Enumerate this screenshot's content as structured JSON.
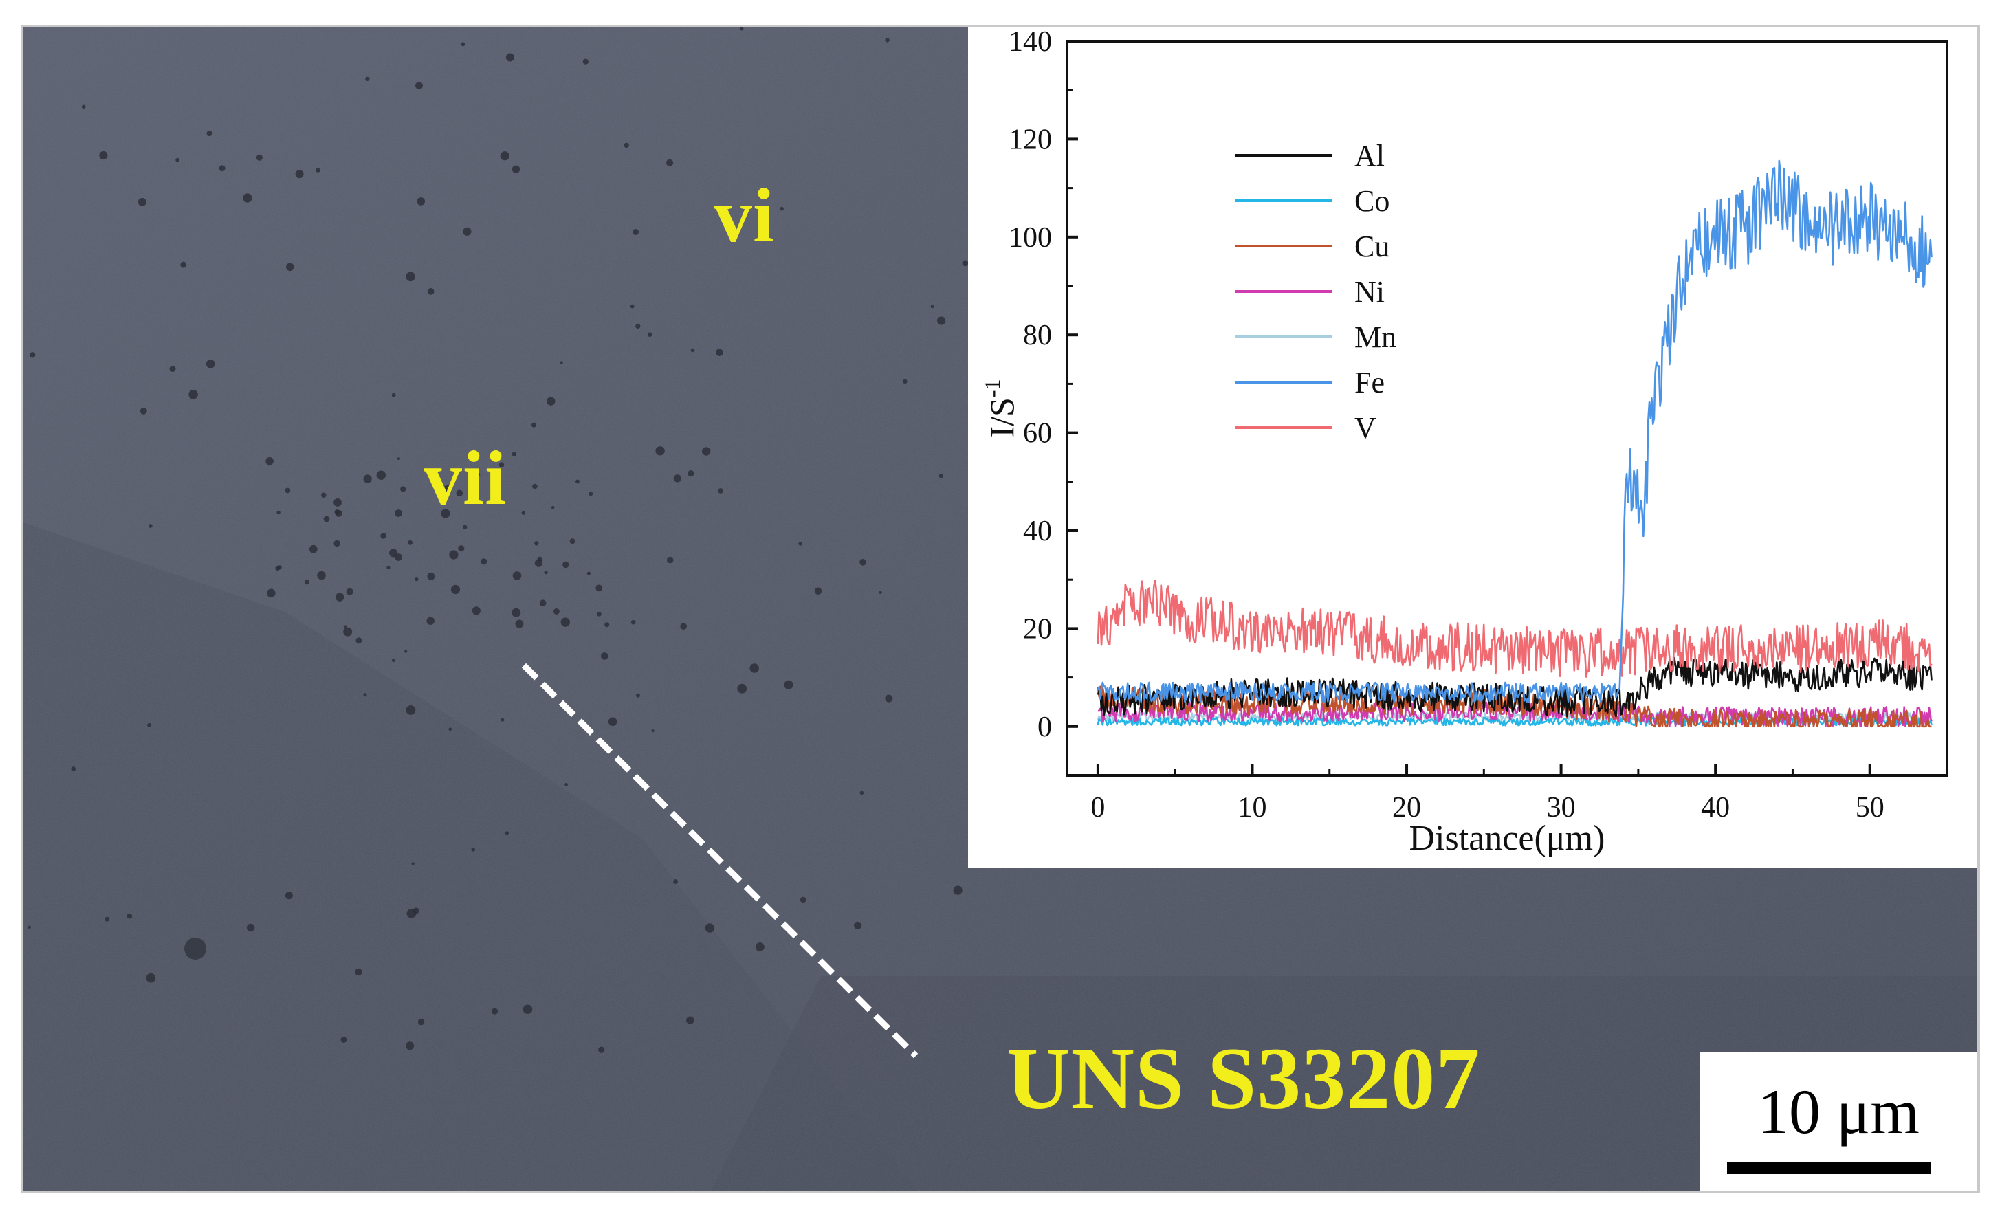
{
  "micrograph": {
    "region_labels": [
      "vi",
      "vii"
    ],
    "alloy_label": "UNS S33207",
    "scale_bar_label": "10 μm",
    "label_color": "#f2ee1c"
  },
  "chart_data": {
    "type": "line",
    "xlabel": "Distance(μm)",
    "ylabel": "I/S",
    "ylabel_superscript": "-1",
    "xlim": [
      -2,
      55
    ],
    "ylim": [
      -10,
      140
    ],
    "x_ticks": [
      0,
      10,
      20,
      30,
      40,
      50
    ],
    "y_ticks": [
      0,
      20,
      40,
      60,
      80,
      100,
      120,
      140
    ],
    "grid": false,
    "legend_position": "top-left",
    "series": [
      {
        "name": "Al",
        "color": "#111111",
        "x": [
          0,
          5,
          10,
          15,
          20,
          25,
          30,
          34,
          35,
          36,
          37,
          40,
          45,
          50,
          54
        ],
        "y": [
          5,
          6,
          7,
          7,
          6,
          6,
          5,
          5,
          7,
          10,
          11,
          11,
          10,
          11,
          10
        ]
      },
      {
        "name": "Co",
        "color": "#25b6e8",
        "x": [
          0,
          10,
          20,
          30,
          40,
          54
        ],
        "y": [
          1,
          1,
          1,
          1,
          1,
          1
        ]
      },
      {
        "name": "Cu",
        "color": "#c0522c",
        "x": [
          0,
          5,
          10,
          15,
          20,
          25,
          30,
          34,
          35,
          38,
          45,
          54
        ],
        "y": [
          6,
          5,
          5,
          5,
          5,
          5,
          4,
          3,
          2,
          1,
          1,
          1
        ]
      },
      {
        "name": "Ni",
        "color": "#d03cb0",
        "x": [
          0,
          10,
          20,
          30,
          34,
          36,
          40,
          45,
          50,
          54
        ],
        "y": [
          3,
          3,
          3,
          3,
          3,
          2,
          2,
          2,
          2,
          2
        ]
      },
      {
        "name": "Mn",
        "color": "#a8cfe0",
        "x": [
          0,
          10,
          20,
          30,
          40,
          54
        ],
        "y": [
          2,
          2,
          2,
          2,
          2,
          2
        ]
      },
      {
        "name": "Fe",
        "color": "#4a94e8",
        "x": [
          0,
          10,
          20,
          30,
          33.8,
          34.2,
          34.6,
          35.2,
          35.8,
          36.5,
          37.5,
          38.5,
          40,
          42,
          44,
          46,
          48,
          50,
          52,
          54
        ],
        "y": [
          7,
          7,
          7,
          7,
          7,
          45,
          52,
          40,
          62,
          72,
          88,
          98,
          100,
          102,
          110,
          103,
          101,
          104,
          100,
          96
        ]
      },
      {
        "name": "V",
        "color": "#f06a72",
        "x": [
          0,
          1,
          2,
          3,
          5,
          8,
          10,
          15,
          20,
          25,
          30,
          34,
          36,
          40,
          45,
          50,
          54
        ],
        "y": [
          19,
          22,
          25,
          26,
          23,
          21,
          20,
          19,
          17,
          16,
          15,
          15,
          16,
          16,
          16,
          17,
          16
        ]
      }
    ]
  },
  "micrograph_scan_line": {
    "from_um": 0,
    "to_um": 54
  }
}
